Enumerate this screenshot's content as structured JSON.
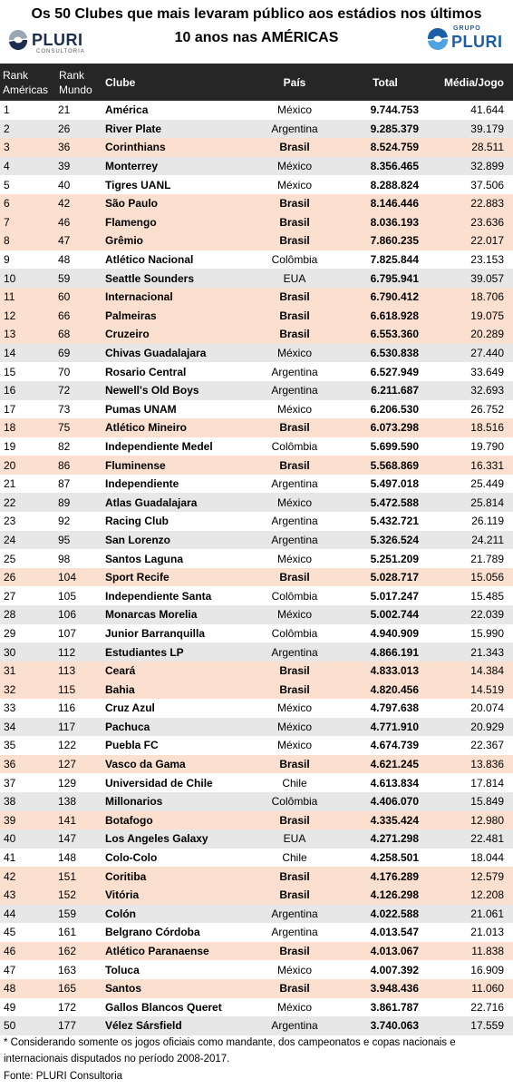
{
  "title_line1": "Os 50 Clubes que mais levaram público aos estádios nos últimos",
  "title_line2": "10 anos nas AMÉRICAS",
  "logo_left": {
    "name": "PLURI",
    "sub": "CONSULTORIA"
  },
  "logo_right": {
    "grupo": "GRUPO",
    "name": "PLURI"
  },
  "colors": {
    "header_bg": "#262626",
    "brazil_row": "#fbe0d0",
    "alt_row": "#e7e7e7",
    "brand_blue": "#1c5ea8"
  },
  "columns": {
    "rank_americas": "Rank Américas",
    "rank_mundo": "Rank Mundo",
    "clube": "Clube",
    "pais": "País",
    "total": "Total",
    "media": "Média/Jogo"
  },
  "rows": [
    [
      "1",
      "21",
      "América",
      "México",
      "9.744.753",
      "41.644"
    ],
    [
      "2",
      "26",
      "River Plate",
      "Argentina",
      "9.285.379",
      "39.179"
    ],
    [
      "3",
      "36",
      "Corinthians",
      "Brasil",
      "8.524.759",
      "28.511"
    ],
    [
      "4",
      "39",
      "Monterrey",
      "México",
      "8.356.465",
      "32.899"
    ],
    [
      "5",
      "40",
      "Tigres UANL",
      "México",
      "8.288.824",
      "37.506"
    ],
    [
      "6",
      "42",
      "São Paulo",
      "Brasil",
      "8.146.446",
      "22.883"
    ],
    [
      "7",
      "46",
      "Flamengo",
      "Brasil",
      "8.036.193",
      "23.636"
    ],
    [
      "8",
      "47",
      "Grêmio",
      "Brasil",
      "7.860.235",
      "22.017"
    ],
    [
      "9",
      "48",
      "Atlético Nacional",
      "Colômbia",
      "7.825.844",
      "23.153"
    ],
    [
      "10",
      "59",
      "Seattle Sounders",
      "EUA",
      "6.795.941",
      "39.057"
    ],
    [
      "11",
      "60",
      "Internacional",
      "Brasil",
      "6.790.412",
      "18.706"
    ],
    [
      "12",
      "66",
      "Palmeiras",
      "Brasil",
      "6.618.928",
      "19.075"
    ],
    [
      "13",
      "68",
      "Cruzeiro",
      "Brasil",
      "6.553.360",
      "20.289"
    ],
    [
      "14",
      "69",
      "Chivas Guadalajara",
      "México",
      "6.530.838",
      "27.440"
    ],
    [
      "15",
      "70",
      "Rosario Central",
      "Argentina",
      "6.527.949",
      "33.649"
    ],
    [
      "16",
      "72",
      "Newell's Old Boys",
      "Argentina",
      "6.211.687",
      "32.693"
    ],
    [
      "17",
      "73",
      "Pumas UNAM",
      "México",
      "6.206.530",
      "26.752"
    ],
    [
      "18",
      "75",
      "Atlético Mineiro",
      "Brasil",
      "6.073.298",
      "18.516"
    ],
    [
      "19",
      "82",
      "Independiente Medel",
      "Colômbia",
      "5.699.590",
      "19.790"
    ],
    [
      "20",
      "86",
      "Fluminense",
      "Brasil",
      "5.568.869",
      "16.331"
    ],
    [
      "21",
      "87",
      "Independiente",
      "Argentina",
      "5.497.018",
      "25.449"
    ],
    [
      "22",
      "89",
      "Atlas Guadalajara",
      "México",
      "5.472.588",
      "25.814"
    ],
    [
      "23",
      "92",
      "Racing Club",
      "Argentina",
      "5.432.721",
      "26.119"
    ],
    [
      "24",
      "95",
      "San Lorenzo",
      "Argentina",
      "5.326.524",
      "24.211"
    ],
    [
      "25",
      "98",
      "Santos Laguna",
      "México",
      "5.251.209",
      "21.789"
    ],
    [
      "26",
      "104",
      "Sport Recife",
      "Brasil",
      "5.028.717",
      "15.056"
    ],
    [
      "27",
      "105",
      "Independiente Santa",
      "Colômbia",
      "5.017.247",
      "15.485"
    ],
    [
      "28",
      "106",
      "Monarcas Morelia",
      "México",
      "5.002.744",
      "22.039"
    ],
    [
      "29",
      "107",
      "Junior Barranquilla",
      "Colômbia",
      "4.940.909",
      "15.990"
    ],
    [
      "30",
      "112",
      "Estudiantes LP",
      "Argentina",
      "4.866.191",
      "21.343"
    ],
    [
      "31",
      "113",
      "Ceará",
      "Brasil",
      "4.833.013",
      "14.384"
    ],
    [
      "32",
      "115",
      "Bahia",
      "Brasil",
      "4.820.456",
      "14.519"
    ],
    [
      "33",
      "116",
      "Cruz Azul",
      "México",
      "4.797.638",
      "20.074"
    ],
    [
      "34",
      "117",
      "Pachuca",
      "México",
      "4.771.910",
      "20.929"
    ],
    [
      "35",
      "122",
      "Puebla FC",
      "México",
      "4.674.739",
      "22.367"
    ],
    [
      "36",
      "127",
      "Vasco da Gama",
      "Brasil",
      "4.621.245",
      "13.836"
    ],
    [
      "37",
      "129",
      "Universidad de Chile",
      "Chile",
      "4.613.834",
      "17.814"
    ],
    [
      "38",
      "138",
      "Millonarios",
      "Colômbia",
      "4.406.070",
      "15.849"
    ],
    [
      "39",
      "141",
      "Botafogo",
      "Brasil",
      "4.335.424",
      "12.980"
    ],
    [
      "40",
      "147",
      "Los Angeles Galaxy",
      "EUA",
      "4.271.298",
      "22.481"
    ],
    [
      "41",
      "148",
      "Colo-Colo",
      "Chile",
      "4.258.501",
      "18.044"
    ],
    [
      "42",
      "151",
      "Coritiba",
      "Brasil",
      "4.176.289",
      "12.579"
    ],
    [
      "43",
      "152",
      "Vitória",
      "Brasil",
      "4.126.298",
      "12.208"
    ],
    [
      "44",
      "159",
      "Colón",
      "Argentina",
      "4.022.588",
      "21.061"
    ],
    [
      "45",
      "161",
      "Belgrano Córdoba",
      "Argentina",
      "4.013.547",
      "21.013"
    ],
    [
      "46",
      "162",
      "Atlético Paranaense",
      "Brasil",
      "4.013.067",
      "11.838"
    ],
    [
      "47",
      "163",
      "Toluca",
      "México",
      "4.007.392",
      "16.909"
    ],
    [
      "48",
      "165",
      "Santos",
      "Brasil",
      "3.948.436",
      "11.060"
    ],
    [
      "49",
      "172",
      "Gallos Blancos Queret",
      "México",
      "3.861.787",
      "22.716"
    ],
    [
      "50",
      "177",
      "Vélez Sársfield",
      "Argentina",
      "3.740.063",
      "17.559"
    ]
  ],
  "footnote": "* Considerando somente os jogos oficiais como mandante, dos campeonatos e copas nacionais e internacionais disputados no período 2008-2017.",
  "source": "Fonte: PLURI Consultoria"
}
